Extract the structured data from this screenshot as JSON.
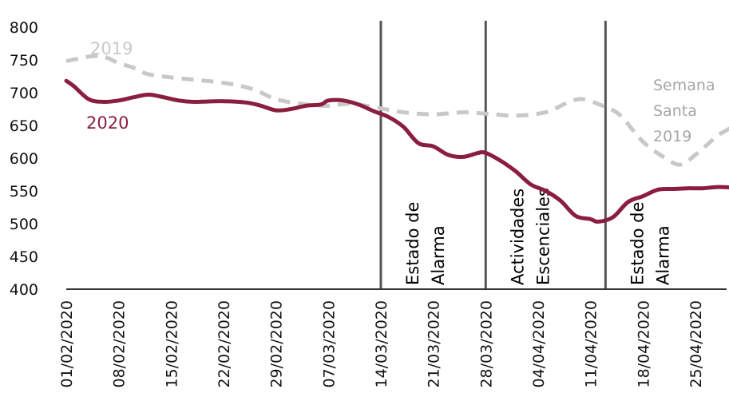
{
  "chart_data": {
    "type": "line",
    "xlabel": "",
    "ylabel": "",
    "ylim": [
      400,
      800
    ],
    "yticks": [
      "400",
      "450",
      "500",
      "550",
      "600",
      "650",
      "700",
      "750",
      "800"
    ],
    "xlim": [
      "01/02/2020",
      "30/04/2020"
    ],
    "xtick_labels": [
      "01/02/2020",
      "08/02/2020",
      "15/02/2020",
      "22/02/2020",
      "29/02/2020",
      "07/03/2020",
      "14/03/2020",
      "21/03/2020",
      "28/03/2020",
      "04/04/2020",
      "11/04/2020",
      "18/04/2020",
      "25/04/2020"
    ],
    "grid": false,
    "legend": "none",
    "series": [
      {
        "name": "2020",
        "color": "#8b1e3f",
        "style": "solid",
        "points": [
          [
            "01/02/2020",
            718
          ],
          [
            "02/02/2020",
            710
          ],
          [
            "04/02/2020",
            690
          ],
          [
            "06/02/2020",
            686
          ],
          [
            "08/02/2020",
            688
          ],
          [
            "10/02/2020",
            693
          ],
          [
            "12/02/2020",
            697
          ],
          [
            "14/02/2020",
            693
          ],
          [
            "16/02/2020",
            688
          ],
          [
            "18/02/2020",
            686
          ],
          [
            "22/02/2020",
            687
          ],
          [
            "25/02/2020",
            685
          ],
          [
            "27/02/2020",
            680
          ],
          [
            "29/02/2020",
            673
          ],
          [
            "02/03/2020",
            675
          ],
          [
            "04/03/2020",
            680
          ],
          [
            "06/03/2020",
            682
          ],
          [
            "07/03/2020",
            688
          ],
          [
            "09/03/2020",
            688
          ],
          [
            "11/03/2020",
            682
          ],
          [
            "13/03/2020",
            672
          ],
          [
            "15/03/2020",
            663
          ],
          [
            "17/03/2020",
            648
          ],
          [
            "19/03/2020",
            623
          ],
          [
            "21/03/2020",
            618
          ],
          [
            "23/03/2020",
            605
          ],
          [
            "25/03/2020",
            602
          ],
          [
            "27/03/2020",
            608
          ],
          [
            "28/03/2020",
            608
          ],
          [
            "30/03/2020",
            596
          ],
          [
            "01/04/2020",
            580
          ],
          [
            "03/04/2020",
            560
          ],
          [
            "05/04/2020",
            550
          ],
          [
            "07/04/2020",
            535
          ],
          [
            "09/04/2020",
            512
          ],
          [
            "11/04/2020",
            507
          ],
          [
            "12/04/2020",
            503
          ],
          [
            "14/04/2020",
            510
          ],
          [
            "16/04/2020",
            533
          ],
          [
            "18/04/2020",
            542
          ],
          [
            "20/04/2020",
            552
          ],
          [
            "22/04/2020",
            553
          ],
          [
            "24/04/2020",
            554
          ],
          [
            "26/04/2020",
            554
          ],
          [
            "28/04/2020",
            556
          ],
          [
            "30/04/2020",
            555
          ]
        ]
      },
      {
        "name": "2019",
        "color": "#c8c8c8",
        "style": "dashed",
        "points": [
          [
            "01/02/2020",
            748
          ],
          [
            "04/02/2020",
            755
          ],
          [
            "06/02/2020",
            755
          ],
          [
            "08/02/2020",
            745
          ],
          [
            "10/02/2020",
            738
          ],
          [
            "12/02/2020",
            728
          ],
          [
            "16/02/2020",
            722
          ],
          [
            "22/02/2020",
            715
          ],
          [
            "26/02/2020",
            705
          ],
          [
            "29/02/2020",
            690
          ],
          [
            "04/03/2020",
            682
          ],
          [
            "07/03/2020",
            680
          ],
          [
            "10/03/2020",
            683
          ],
          [
            "14/03/2020",
            676
          ],
          [
            "17/03/2020",
            670
          ],
          [
            "21/03/2020",
            667
          ],
          [
            "25/03/2020",
            670
          ],
          [
            "28/03/2020",
            668
          ],
          [
            "01/04/2020",
            665
          ],
          [
            "05/04/2020",
            670
          ],
          [
            "08/04/2020",
            685
          ],
          [
            "10/04/2020",
            690
          ],
          [
            "13/04/2020",
            678
          ],
          [
            "15/04/2020",
            665
          ],
          [
            "18/04/2020",
            625
          ],
          [
            "21/04/2020",
            600
          ],
          [
            "23/04/2020",
            590
          ],
          [
            "25/04/2020",
            605
          ],
          [
            "27/04/2020",
            625
          ],
          [
            "28/04/2020",
            635
          ],
          [
            "30/04/2020",
            648
          ]
        ]
      }
    ],
    "vertical_markers": [
      {
        "date": "14/03/2020",
        "lines": [
          "Estado de",
          "Alarma"
        ]
      },
      {
        "date": "28/03/2020",
        "lines": [
          "Actividades",
          "Escenciales"
        ]
      },
      {
        "date": "13/04/2020",
        "lines": [
          "Estado de",
          "Alarma"
        ]
      }
    ],
    "annotations": [
      {
        "lines": [
          "Semana",
          "Santa",
          "2019"
        ],
        "color": "#a6a6a6"
      }
    ]
  }
}
